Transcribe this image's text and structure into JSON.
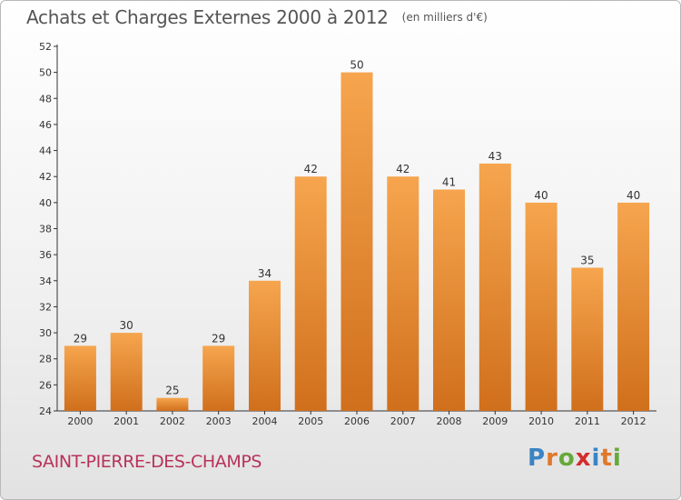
{
  "title": "Achats et Charges Externes 2000 à 2012",
  "subtitle": "(en milliers d'€)",
  "commune": "SAINT-PIERRE-DES-CHAMPS",
  "logo": {
    "letters": [
      "P",
      "r",
      "o",
      "x",
      "i",
      "t",
      "i"
    ],
    "colors": [
      "#3a84c4",
      "#e0782a",
      "#66a83a",
      "#d42c2c",
      "#3a84c4",
      "#e0782a",
      "#66a83a"
    ]
  },
  "colors": {
    "bar_top": "#f6a54e",
    "bar_bottom": "#d06f1c",
    "axis": "#333333",
    "grid": "#cccccc",
    "commune": "#b8325a"
  },
  "chart_data": {
    "type": "bar",
    "title": "Achats et Charges Externes 2000 à 2012",
    "ylabel": "en milliers d'€",
    "xlabel": "",
    "categories": [
      "2000",
      "2001",
      "2002",
      "2003",
      "2004",
      "2005",
      "2006",
      "2007",
      "2008",
      "2009",
      "2010",
      "2011",
      "2012"
    ],
    "values": [
      29,
      30,
      25,
      29,
      34,
      42,
      50,
      42,
      41,
      43,
      40,
      35,
      40
    ],
    "ylim": [
      24,
      52
    ],
    "yticks": [
      24,
      26,
      28,
      30,
      32,
      34,
      36,
      38,
      40,
      42,
      44,
      46,
      48,
      50,
      52
    ],
    "grid": false,
    "data_labels": true
  }
}
